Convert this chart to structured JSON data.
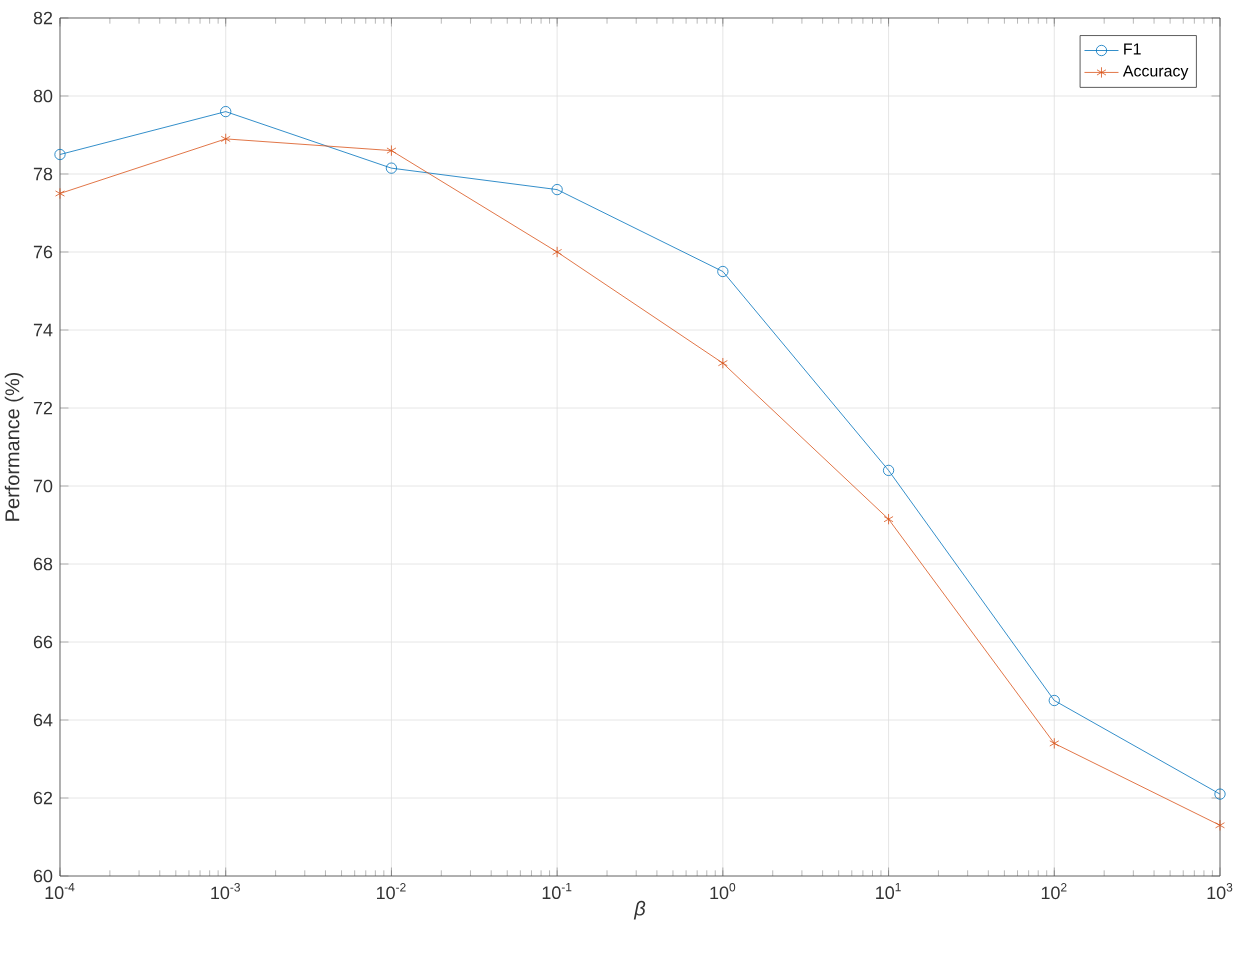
{
  "chart_data": {
    "type": "line",
    "xlabel": "β",
    "ylabel": "Performance (%)",
    "log": "x",
    "x": [
      0.0001,
      0.001,
      0.01,
      0.1,
      1,
      10,
      100,
      1000
    ],
    "series": [
      {
        "name": "F1",
        "color": "#0072bd",
        "marker": "circle",
        "values": [
          78.5,
          79.6,
          78.15,
          77.6,
          75.5,
          70.4,
          64.5,
          62.1
        ]
      },
      {
        "name": "Accuracy",
        "color": "#d95319",
        "marker": "cross",
        "values": [
          77.5,
          78.9,
          78.6,
          76.0,
          73.15,
          69.15,
          63.4,
          61.3
        ]
      }
    ],
    "xlim": [
      0.0001,
      1000
    ],
    "xticks": [
      {
        "value": 0.0001,
        "label": "10$^{-4}$"
      },
      {
        "value": 0.001,
        "label": "10$^{-3}$"
      },
      {
        "value": 0.01,
        "label": "10$^{-2}$"
      },
      {
        "value": 0.1,
        "label": "10$^{-1}$"
      },
      {
        "value": 1,
        "label": "10$^{0}$"
      },
      {
        "value": 10,
        "label": "10$^{1}$"
      },
      {
        "value": 100,
        "label": "10$^{2}$"
      },
      {
        "value": 1000,
        "label": "10$^{3}$"
      }
    ],
    "ylim": [
      60,
      82
    ],
    "yticks": [
      60,
      62,
      64,
      66,
      68,
      70,
      72,
      74,
      76,
      78,
      80,
      82
    ],
    "grid": true,
    "legend": "top right"
  }
}
